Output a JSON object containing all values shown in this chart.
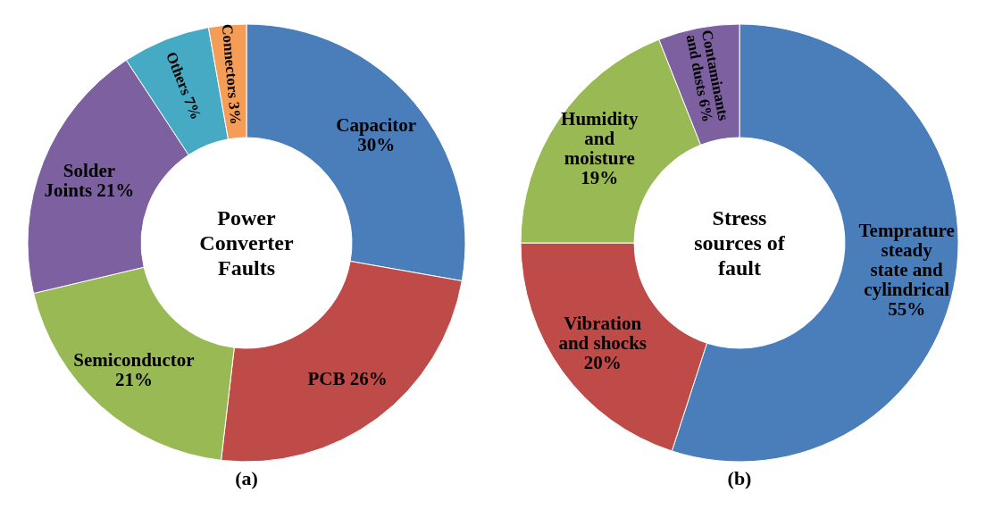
{
  "chart_data": [
    {
      "type": "donut",
      "title": "Power Converter Faults",
      "categories": [
        "Capacitor",
        "PCB",
        "Semiconductor",
        "Solder Joints",
        "Others",
        "Connectors"
      ],
      "values": [
        30,
        26,
        21,
        21,
        7,
        3
      ],
      "value_labels": [
        "30%",
        "26%",
        "21%",
        "21%",
        "7%",
        "3%"
      ],
      "colors": [
        "#4a7ebb",
        "#be4b48",
        "#98b954",
        "#7d60a0",
        "#46aac5",
        "#f59d56"
      ],
      "annotations": [
        "(a)"
      ]
    },
    {
      "type": "donut",
      "title": "Stress sources of fault",
      "categories": [
        "Temprature steady state and cylindrical",
        "Vibration and shocks",
        "Humidity and moisture",
        "Contaminants and dusts"
      ],
      "values": [
        55,
        20,
        19,
        6
      ],
      "value_labels": [
        "55%",
        "20%",
        "19%",
        "6%"
      ],
      "colors": [
        "#4a7ebb",
        "#be4b48",
        "#98b954",
        "#7d60a0"
      ],
      "annotations": [
        "(b)"
      ]
    }
  ]
}
